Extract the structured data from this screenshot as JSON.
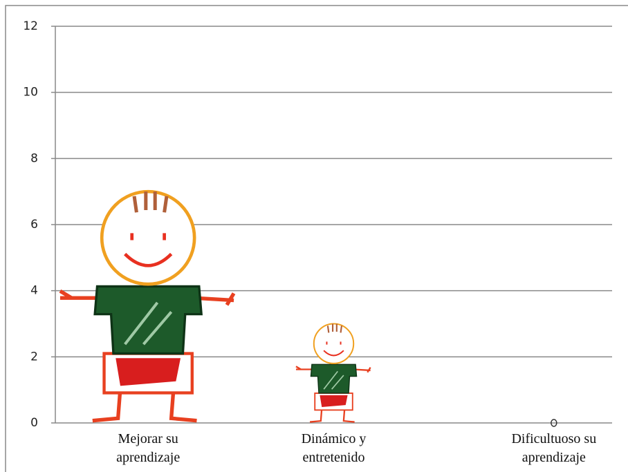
{
  "chart_data": {
    "type": "pictograph",
    "categories": [
      "Mejorar su aprendizaje",
      "Dinámico y entretenido",
      "Dificultuoso su aprendizaje"
    ],
    "values": [
      7,
      3,
      0
    ],
    "ylim": [
      0,
      12
    ],
    "yticks": [
      0,
      2,
      4,
      6,
      8,
      10,
      12
    ],
    "grid": true
  }
}
